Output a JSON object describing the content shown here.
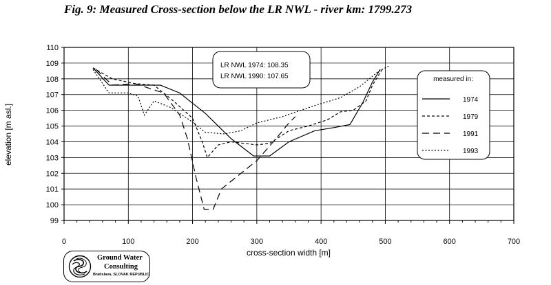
{
  "figure": {
    "title": "Fig. 9: Measured Cross-section below the LR NWL - river km: 1799.273"
  },
  "chart_data": {
    "type": "line",
    "xlabel": "cross-section width [m]",
    "ylabel": "elevation [m asl.]",
    "xlim": [
      0,
      700
    ],
    "ylim": [
      99,
      110
    ],
    "xticks": [
      0,
      100,
      200,
      300,
      400,
      500,
      600,
      700
    ],
    "yticks": [
      99,
      100,
      101,
      102,
      103,
      104,
      105,
      106,
      107,
      108,
      109,
      110
    ],
    "grid": true,
    "annotation": [
      "LR NWL 1974: 108.35",
      "LR NWL 1990: 107.65"
    ],
    "legend": {
      "title": "measured in:",
      "position": "right"
    },
    "series": [
      {
        "name": "1974",
        "dash": "solid",
        "points": [
          [
            45,
            108.7
          ],
          [
            70,
            107.6
          ],
          [
            100,
            107.6
          ],
          [
            150,
            107.6
          ],
          [
            180,
            107.1
          ],
          [
            220,
            105.8
          ],
          [
            260,
            104.2
          ],
          [
            295,
            103.1
          ],
          [
            320,
            103.1
          ],
          [
            350,
            104.0
          ],
          [
            390,
            104.7
          ],
          [
            420,
            104.9
          ],
          [
            445,
            105.1
          ],
          [
            465,
            106.5
          ],
          [
            480,
            107.8
          ],
          [
            492,
            108.6
          ]
        ]
      },
      {
        "name": "1979",
        "dash": "short",
        "points": [
          [
            45,
            108.7
          ],
          [
            75,
            108.0
          ],
          [
            110,
            107.7
          ],
          [
            140,
            107.6
          ],
          [
            170,
            106.6
          ],
          [
            200,
            105.5
          ],
          [
            215,
            104.0
          ],
          [
            223,
            103.0
          ],
          [
            240,
            103.8
          ],
          [
            260,
            104.0
          ],
          [
            280,
            103.9
          ],
          [
            300,
            103.8
          ],
          [
            320,
            103.9
          ],
          [
            350,
            104.7
          ],
          [
            380,
            105.0
          ],
          [
            410,
            105.4
          ],
          [
            430,
            105.9
          ],
          [
            450,
            106.0
          ],
          [
            470,
            106.6
          ],
          [
            480,
            107.6
          ],
          [
            495,
            108.6
          ]
        ]
      },
      {
        "name": "1991",
        "dash": "long",
        "points": [
          [
            50,
            108.6
          ],
          [
            75,
            107.6
          ],
          [
            110,
            107.7
          ],
          [
            155,
            107.1
          ],
          [
            180,
            105.7
          ],
          [
            192,
            104.2
          ],
          [
            205,
            101.8
          ],
          [
            218,
            99.7
          ],
          [
            232,
            99.7
          ],
          [
            245,
            101.0
          ],
          [
            300,
            102.8
          ],
          [
            330,
            104.2
          ],
          [
            350,
            105.2
          ],
          [
            360,
            105.6
          ]
        ]
      },
      {
        "name": "1993",
        "dash": "dotted",
        "points": [
          [
            45,
            108.6
          ],
          [
            70,
            107.1
          ],
          [
            100,
            107.1
          ],
          [
            115,
            106.9
          ],
          [
            125,
            105.7
          ],
          [
            140,
            106.6
          ],
          [
            165,
            106.2
          ],
          [
            195,
            105.4
          ],
          [
            220,
            104.6
          ],
          [
            250,
            104.5
          ],
          [
            275,
            104.7
          ],
          [
            300,
            105.2
          ],
          [
            340,
            105.6
          ],
          [
            390,
            106.3
          ],
          [
            430,
            106.8
          ],
          [
            460,
            107.5
          ],
          [
            490,
            108.5
          ],
          [
            505,
            108.8
          ]
        ]
      }
    ]
  },
  "logo": {
    "line1": "Ground Water",
    "line2": "Consulting",
    "line3": "Bratislava, SLOVAK REPUBLIC"
  }
}
